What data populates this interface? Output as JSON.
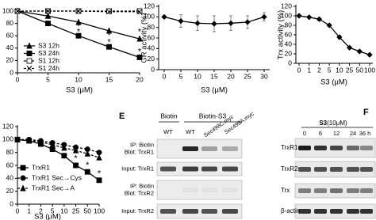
{
  "chart_data": [
    {
      "type": "line",
      "xlabel": "S3 (μM)",
      "x": [
        0,
        5,
        10,
        15,
        20
      ],
      "xlim": [
        0,
        20
      ],
      "xticks": [
        0,
        5,
        10,
        15,
        20
      ],
      "ylim": [
        0,
        100
      ],
      "yticks": [
        0,
        20,
        40,
        60,
        80,
        100
      ],
      "series": [
        {
          "name": "S3 12h",
          "color": "#000000",
          "marker": "triangle",
          "filled": true,
          "dashed": false,
          "values": [
            100,
            92,
            82,
            68,
            55
          ]
        },
        {
          "name": "S3 24h",
          "color": "#000000",
          "marker": "square",
          "filled": true,
          "dashed": false,
          "values": [
            100,
            80,
            60,
            42,
            25
          ]
        },
        {
          "name": "S1 12h",
          "color": "#000000",
          "marker": "square",
          "filled": false,
          "dashed": true,
          "values": [
            100,
            100,
            100,
            100,
            100
          ]
        },
        {
          "name": "S1 24h",
          "color": "#000000",
          "marker": "x",
          "filled": false,
          "dashed": true,
          "values": [
            100,
            100,
            100,
            99,
            99
          ]
        }
      ],
      "annotations": [
        {
          "text": "*",
          "x": 10,
          "y": 75
        },
        {
          "text": "*",
          "x": 10,
          "y": 66
        },
        {
          "text": "*",
          "x": 15,
          "y": 60
        },
        {
          "text": "*",
          "x": 15,
          "y": 49
        },
        {
          "text": "*",
          "x": 20,
          "y": 66
        },
        {
          "text": "*",
          "x": 20,
          "y": 34
        }
      ]
    },
    {
      "type": "line",
      "ylabel": "GR activity (%)",
      "xlabel": "S3 (μM)",
      "x": [
        0,
        5,
        10,
        15,
        20,
        25,
        30
      ],
      "xlim": [
        0,
        30
      ],
      "xticks": [
        0,
        5,
        10,
        15,
        20,
        25,
        30
      ],
      "ylim": [
        0,
        120
      ],
      "yticks": [
        0,
        20,
        40,
        60,
        80,
        100,
        120
      ],
      "series": [
        {
          "name": "GR",
          "color": "#000000",
          "marker": "diamond",
          "filled": true,
          "dashed": false,
          "values": [
            100,
            92,
            88,
            87,
            88,
            90,
            100
          ],
          "errors": [
            0,
            12,
            14,
            15,
            14,
            12,
            8
          ]
        }
      ]
    },
    {
      "type": "line",
      "ylabel": "Trx activity (%)",
      "xlabel": "S3 (μM)",
      "categories": [
        "0",
        "1",
        "2",
        "5",
        "10",
        "25",
        "50",
        "100"
      ],
      "ylim": [
        0,
        120
      ],
      "yticks": [
        0,
        20,
        40,
        60,
        80,
        100,
        120
      ],
      "series": [
        {
          "name": "Trx",
          "color": "#000000",
          "marker": "diamond",
          "filled": true,
          "dashed": false,
          "values": [
            100,
            97,
            93,
            80,
            55,
            33,
            25,
            18
          ],
          "errors": [
            0,
            2,
            3,
            3,
            4,
            3,
            3,
            3
          ]
        }
      ]
    },
    {
      "type": "line",
      "xlabel": "S3 (μM)",
      "categories": [
        "0",
        "1",
        "2",
        "5",
        "10",
        "25",
        "50",
        "100"
      ],
      "ylim": [
        0,
        120
      ],
      "yticks": [
        0,
        20,
        40,
        60,
        80,
        100,
        120
      ],
      "series": [
        {
          "name": "TrxR1",
          "color": "#000000",
          "marker": "square",
          "filled": true,
          "dashed": false,
          "values": [
            100,
            98,
            93,
            85,
            75,
            60,
            50,
            37
          ]
        },
        {
          "name": "TrxR1 Sec→Cys",
          "color": "#000000",
          "marker": "circle",
          "filled": true,
          "dashed": true,
          "values": [
            100,
            100,
            98,
            95,
            92,
            88,
            85,
            80
          ]
        },
        {
          "name": "TrxR1 Sec→A",
          "color": "#000000",
          "marker": "triangle",
          "filled": true,
          "dashed": true,
          "values": [
            100,
            99,
            96,
            92,
            87,
            83,
            78,
            72
          ]
        }
      ],
      "annotations": [
        {
          "text": "*",
          "x": 4,
          "y": 82
        },
        {
          "text": "*",
          "x": 5,
          "y": 70
        },
        {
          "text": "*",
          "x": 6,
          "y": 60
        },
        {
          "text": "*",
          "x": 7,
          "y": 47
        }
      ]
    }
  ],
  "panel_e": {
    "label": "E",
    "groups": [
      "Biotin",
      "Biotin-S3"
    ],
    "lanes": [
      "WT",
      "WT",
      "Sec498C.myc",
      "Sec498A.myc"
    ],
    "rows": [
      [
        "IP: Biotin",
        "Blot: TrxR1"
      ],
      [
        "Input: TrxR1"
      ],
      [
        "IP: Biotin",
        "Blot: TrxR2"
      ],
      [
        "Input: TrxR2"
      ]
    ]
  },
  "panel_f": {
    "label": "F",
    "treatment_bold": "S3",
    "treatment": "(10μM)",
    "times": [
      "0",
      "6",
      "12",
      "24",
      "36 h"
    ],
    "rows": [
      "TrxR1",
      "TrxR2",
      "Trx",
      "β-actin"
    ]
  }
}
